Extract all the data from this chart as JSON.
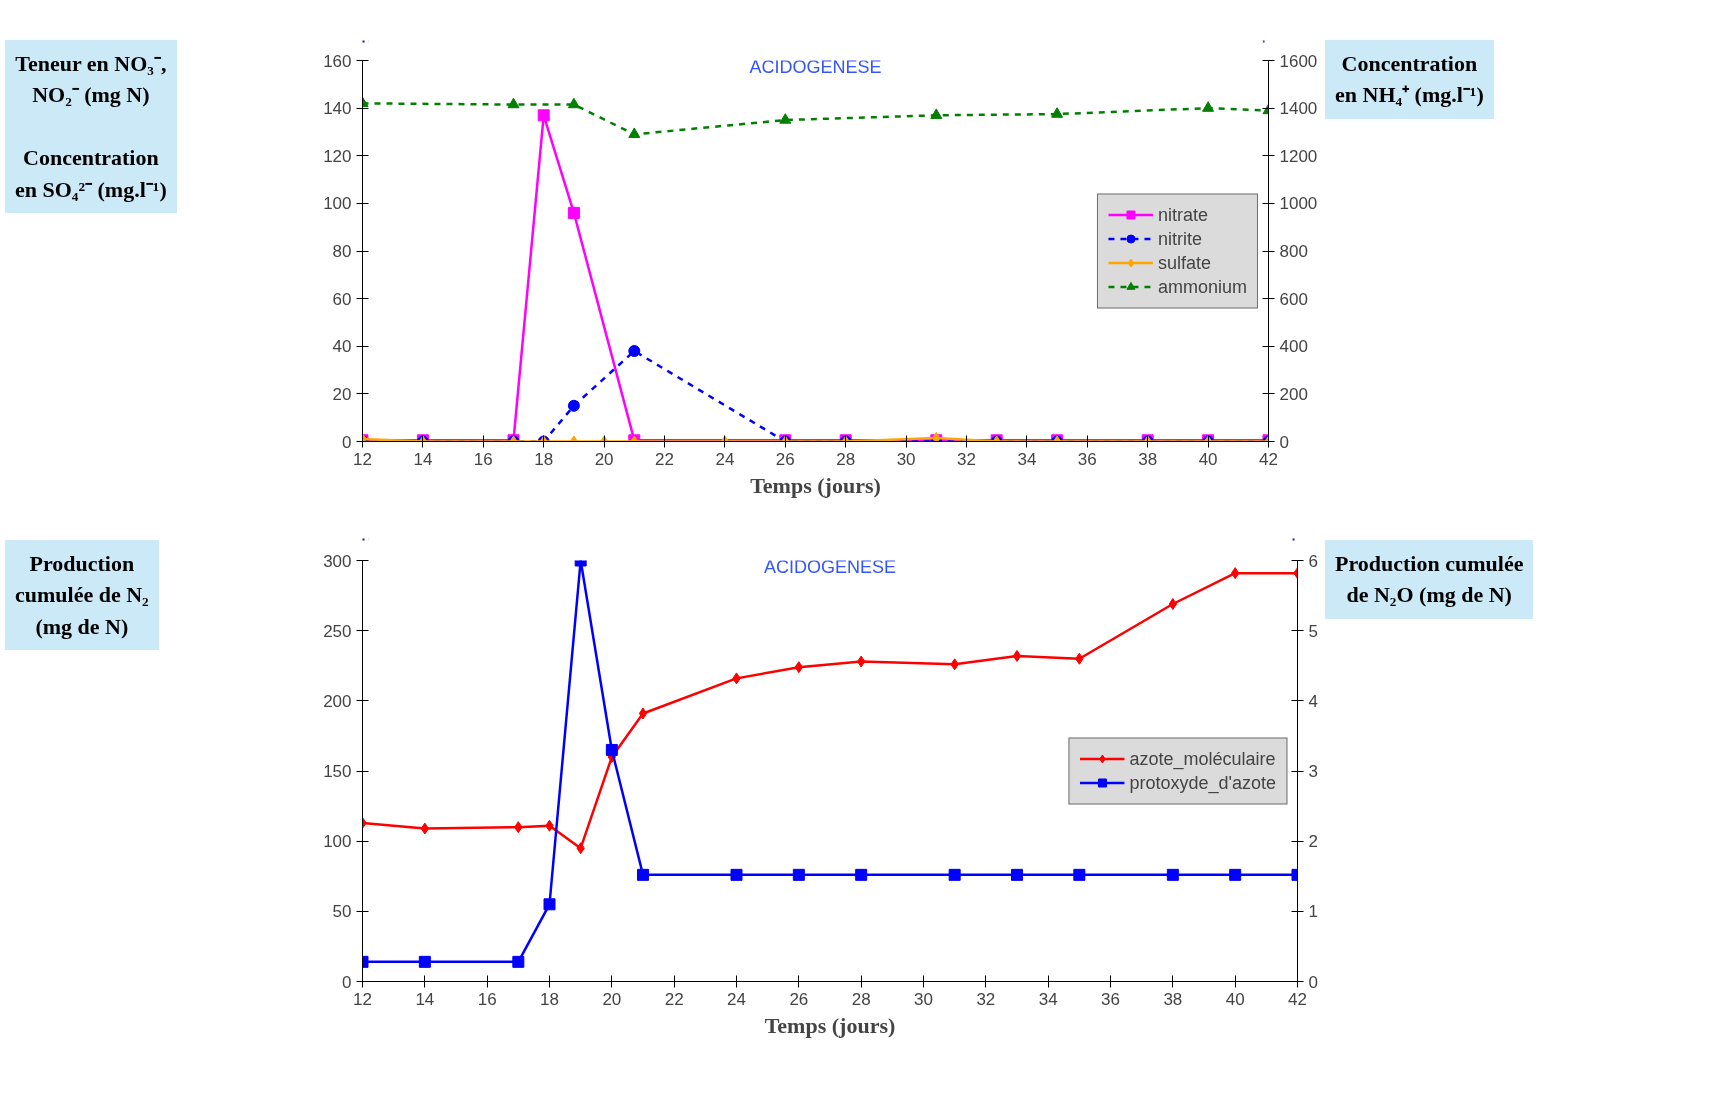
{
  "chart_data": [
    {
      "type": "line",
      "xlabel": "Temps (jours)",
      "ylabel": "Teneur en NO₃⁻,\nNO₂⁻ (mg N)\n\nConcentration\nen SO₄²⁻ (mg.l⁻¹)",
      "y2label": "Concentration\nen NH₄⁺ (mg.l⁻¹)",
      "annotations": [
        "ACIDOGENESE"
      ],
      "xlim": [
        12,
        42
      ],
      "xticks": [
        12,
        14,
        16,
        18,
        20,
        22,
        24,
        26,
        28,
        30,
        32,
        34,
        36,
        38,
        40,
        42
      ],
      "ylim": [
        0,
        160
      ],
      "yticks": [
        0,
        20,
        40,
        60,
        80,
        100,
        120,
        140,
        160
      ],
      "y2lim": [
        0,
        1600
      ],
      "y2ticks": [
        0,
        200,
        400,
        600,
        800,
        1000,
        1200,
        1400,
        1600
      ],
      "grid": false,
      "legend": "right",
      "series": [
        {
          "name": "nitrate",
          "color": "#ff00ff",
          "marker": "square",
          "line_style": "solid",
          "x": [
            12,
            14,
            17,
            18,
            19,
            21,
            26,
            28,
            31,
            33,
            35,
            38,
            40,
            42
          ],
          "values": [
            0.5,
            0.5,
            0.5,
            137,
            96,
            0.5,
            0.5,
            0.5,
            0.5,
            0.5,
            0.5,
            0.5,
            0.5,
            0.5
          ]
        },
        {
          "name": "nitrite",
          "color": "#0000ff",
          "marker": "circle",
          "line_style": "dashed",
          "x": [
            12,
            14,
            17,
            18,
            19,
            21,
            26,
            28,
            31,
            33,
            35,
            38,
            40,
            42
          ],
          "values": [
            0,
            0,
            0,
            0,
            15,
            38,
            0,
            0,
            0,
            0,
            0,
            0,
            0,
            0
          ]
        },
        {
          "name": "sulfate",
          "color": "#ffa500",
          "marker": "diamond",
          "line_style": "solid",
          "x": [
            12,
            14,
            17,
            18,
            19,
            20,
            21,
            24,
            26,
            28,
            31,
            33,
            35,
            38,
            40,
            42
          ],
          "values": [
            1,
            0,
            0,
            0,
            0,
            0,
            0,
            0,
            0,
            0,
            1.5,
            0,
            0,
            0,
            0,
            0
          ]
        },
        {
          "name": "ammonium",
          "color": "#008000",
          "marker": "triangle",
          "line_style": "dashed",
          "axis": "y2",
          "x": [
            12,
            17,
            19,
            21,
            26,
            31,
            35,
            40,
            42
          ],
          "values": [
            1420,
            1415,
            1415,
            1290,
            1350,
            1370,
            1375,
            1400,
            1390
          ]
        }
      ]
    },
    {
      "type": "line",
      "xlabel": "Temps (jours)",
      "ylabel": "Production\ncumulée de N₂\n(mg de N)",
      "y2label": "Production cumulée\nde N₂O (mg de N)",
      "annotations": [
        "ACIDOGENESE"
      ],
      "xlim": [
        12,
        42
      ],
      "xticks": [
        12,
        14,
        16,
        18,
        20,
        22,
        24,
        26,
        28,
        30,
        32,
        34,
        36,
        38,
        40,
        42
      ],
      "ylim": [
        0,
        300
      ],
      "yticks": [
        0,
        50,
        100,
        150,
        200,
        250,
        300
      ],
      "y2lim": [
        0,
        6
      ],
      "y2ticks": [
        0,
        1,
        2,
        3,
        4,
        5,
        6
      ],
      "grid": false,
      "legend": "right",
      "series": [
        {
          "name": "azote_moléculaire",
          "color": "#ff0000",
          "marker": "diamond",
          "line_style": "solid",
          "x": [
            12,
            14,
            17,
            18,
            19,
            20,
            21,
            24,
            26,
            28,
            31,
            33,
            35,
            38,
            40,
            42
          ],
          "values": [
            113,
            109,
            110,
            111,
            95,
            160,
            191,
            216,
            224,
            228,
            226,
            232,
            230,
            269,
            291,
            291
          ]
        },
        {
          "name": "protoxyde_d'azote",
          "color": "#0000ff",
          "marker": "square",
          "line_style": "solid",
          "axis": "y2",
          "x": [
            12,
            14,
            17,
            18,
            19,
            20,
            21,
            24,
            26,
            28,
            31,
            33,
            35,
            38,
            40,
            42
          ],
          "values": [
            0.28,
            0.28,
            0.28,
            1.1,
            6.0,
            3.3,
            1.52,
            1.52,
            1.52,
            1.52,
            1.52,
            1.52,
            1.52,
            1.52,
            1.52,
            1.52
          ]
        }
      ]
    }
  ]
}
